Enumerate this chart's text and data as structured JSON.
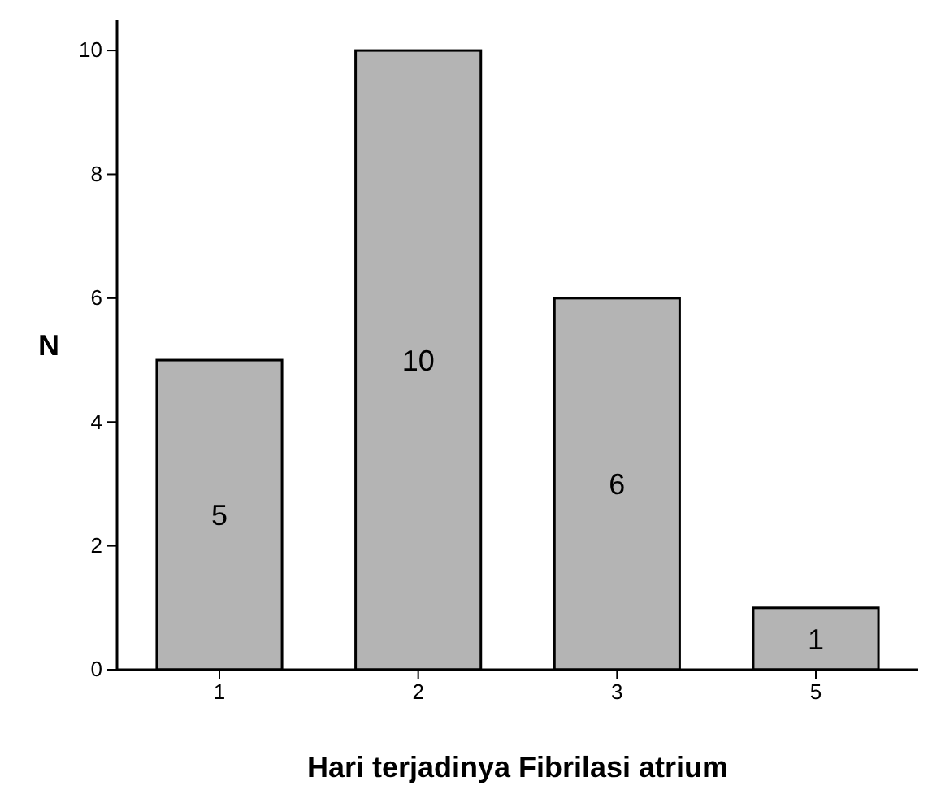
{
  "chart_data": {
    "type": "bar",
    "xlabel": "Hari terjadinya Fibrilasi atrium",
    "ylabel": "N",
    "categories": [
      "1",
      "2",
      "3",
      "5"
    ],
    "values": [
      5,
      10,
      6,
      1
    ],
    "color": "#b4b4b4",
    "ylim": [
      0,
      10.5
    ],
    "yticks": [
      0,
      2,
      4,
      6,
      8,
      10
    ],
    "data_labels": true,
    "grid": false
  }
}
